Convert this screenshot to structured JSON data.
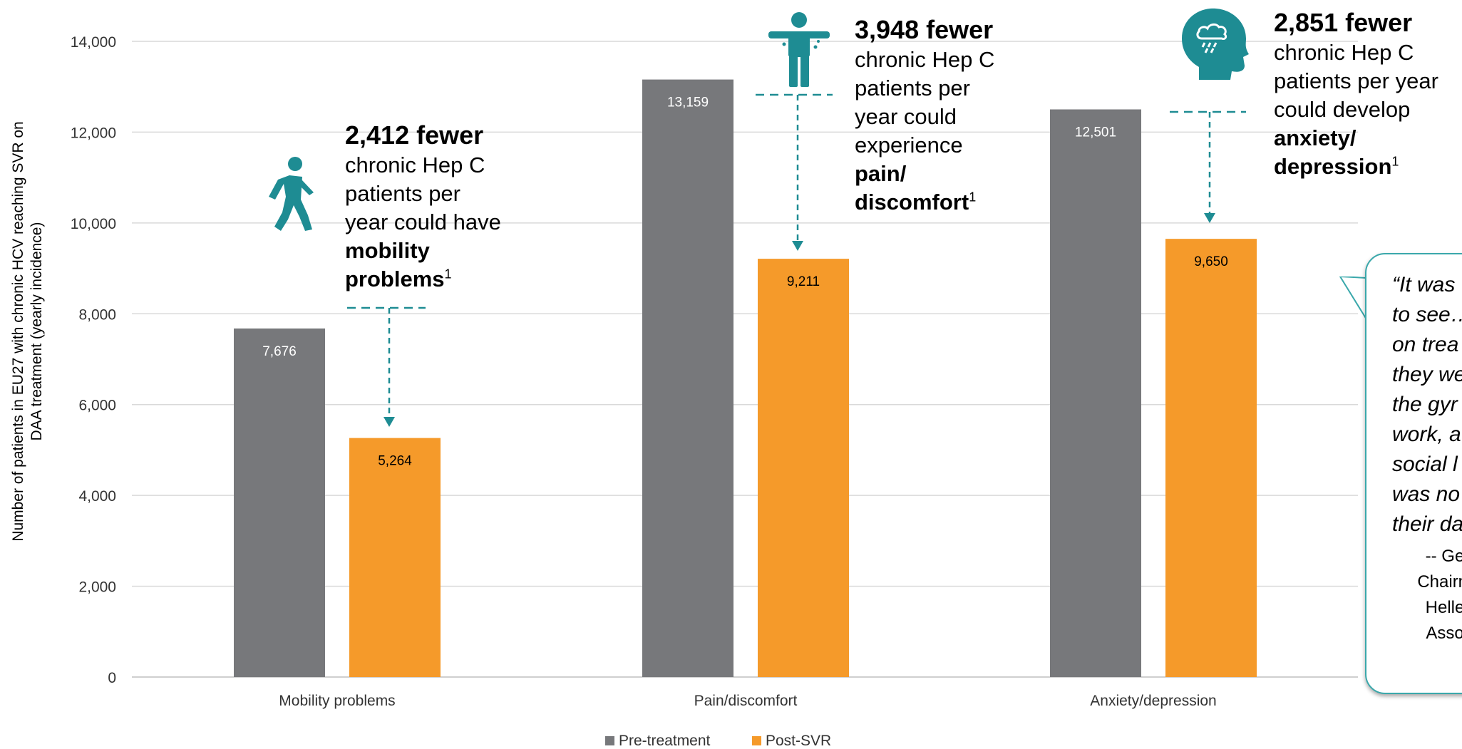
{
  "chart_data": {
    "type": "bar",
    "categories": [
      "Mobility problems",
      "Pain/discomfort",
      "Anxiety/depression"
    ],
    "series": [
      {
        "name": "Pre-treatment",
        "values": [
          7676,
          13159,
          12501
        ],
        "labels": [
          "7,676",
          "13,159",
          "12,501"
        ],
        "color": "#77787b"
      },
      {
        "name": "Post-SVR",
        "values": [
          5264,
          9211,
          9650
        ],
        "labels": [
          "5,264",
          "9,211",
          "9,650"
        ],
        "color": "#f59a2a"
      }
    ],
    "ylabel_line1": "Number of patients in  EU27 with chronic HCV reaching SVR on",
    "ylabel_line2": "DAA treatment (yearly incidence)",
    "ylim": [
      0,
      14000
    ],
    "yticks": [
      "0",
      "2,000",
      "4,000",
      "6,000",
      "8,000",
      "10,000",
      "12,000",
      "14,000"
    ],
    "grid": true,
    "legend_position": "bottom-center"
  },
  "accent_color": "#1e8c93",
  "annotations": [
    {
      "icon": "walking-person-icon",
      "headline": "2,412 fewer",
      "lines": [
        "chronic Hep C",
        "patients per",
        "year could have"
      ],
      "bold_lines": [
        "mobility",
        "problems"
      ],
      "footnote": "1"
    },
    {
      "icon": "pain-figure-icon",
      "headline": "3,948 fewer",
      "lines": [
        "chronic Hep C",
        "patients per",
        "year could",
        "experience"
      ],
      "bold_lines": [
        "pain/",
        "discomfort"
      ],
      "footnote": "1"
    },
    {
      "icon": "rain-cloud-head-icon",
      "headline": "2,851 fewer",
      "lines": [
        "chronic Hep C",
        "patients per year",
        "could develop"
      ],
      "bold_lines": [
        "anxiety/",
        "depression"
      ],
      "footnote": "1"
    }
  ],
  "quote": {
    "lines": [
      "“It was",
      "to see…",
      "on trea",
      "they we",
      "the gyr",
      "work, a",
      "social l",
      "was no",
      "their da"
    ],
    "attribution": [
      "-- Ge",
      "Chairm",
      "Helle",
      "Asso"
    ]
  }
}
